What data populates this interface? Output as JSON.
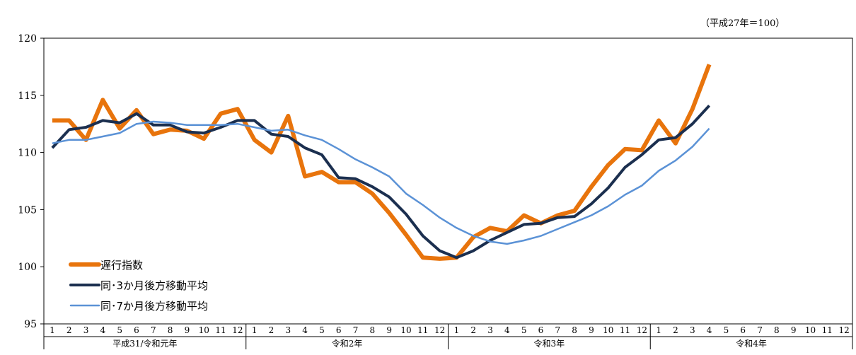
{
  "note": "（平成27年＝100）",
  "chart_data": {
    "type": "line",
    "title": "",
    "xlabel": "",
    "ylabel": "",
    "ylim": [
      95,
      120
    ],
    "yticks": [
      95,
      100,
      105,
      110,
      115,
      120
    ],
    "month_labels": [
      "1",
      "2",
      "3",
      "4",
      "5",
      "6",
      "7",
      "8",
      "9",
      "10",
      "11",
      "12"
    ],
    "year_groups": [
      "平成31/令和元年",
      "令和2年",
      "令和3年",
      "令和4年"
    ],
    "legend": {
      "placement": "bottom-left"
    },
    "series": [
      {
        "name": "遅行指数",
        "color": "#E8740C",
        "width": 6,
        "values": [
          112.8,
          112.8,
          111.1,
          114.6,
          112.1,
          113.7,
          111.6,
          112.0,
          111.9,
          111.2,
          113.4,
          113.8,
          111.1,
          110.0,
          113.2,
          107.9,
          108.3,
          107.4,
          107.4,
          106.4,
          104.7,
          102.8,
          100.8,
          100.7,
          100.8,
          102.6,
          103.4,
          103.1,
          104.5,
          103.8,
          104.5,
          104.9,
          107.0,
          108.9,
          110.3,
          110.2,
          112.8,
          110.8,
          113.8,
          117.7
        ]
      },
      {
        "name": "同･3か月後方移動平均",
        "color": "#1B2F4F",
        "width": 4,
        "values": [
          110.4,
          112.0,
          112.2,
          112.8,
          112.6,
          113.4,
          112.4,
          112.4,
          111.8,
          111.7,
          112.2,
          112.8,
          112.8,
          111.6,
          111.4,
          110.4,
          109.8,
          107.8,
          107.7,
          107.0,
          106.1,
          104.6,
          102.7,
          101.4,
          100.8,
          101.4,
          102.3,
          103.0,
          103.7,
          103.8,
          104.3,
          104.4,
          105.5,
          106.9,
          108.7,
          109.8,
          111.1,
          111.3,
          112.5,
          114.1
        ]
      },
      {
        "name": "同･7か月後方移動平均",
        "color": "#5B92D6",
        "width": 2.5,
        "values": [
          110.8,
          111.1,
          111.1,
          111.4,
          111.7,
          112.5,
          112.7,
          112.6,
          112.4,
          112.4,
          112.4,
          112.5,
          112.2,
          111.9,
          112.0,
          111.5,
          111.1,
          110.3,
          109.4,
          108.7,
          107.9,
          106.4,
          105.4,
          104.3,
          103.4,
          102.7,
          102.2,
          102.0,
          102.3,
          102.7,
          103.3,
          103.9,
          104.5,
          105.3,
          106.3,
          107.1,
          108.4,
          109.3,
          110.5,
          112.1
        ]
      }
    ]
  }
}
